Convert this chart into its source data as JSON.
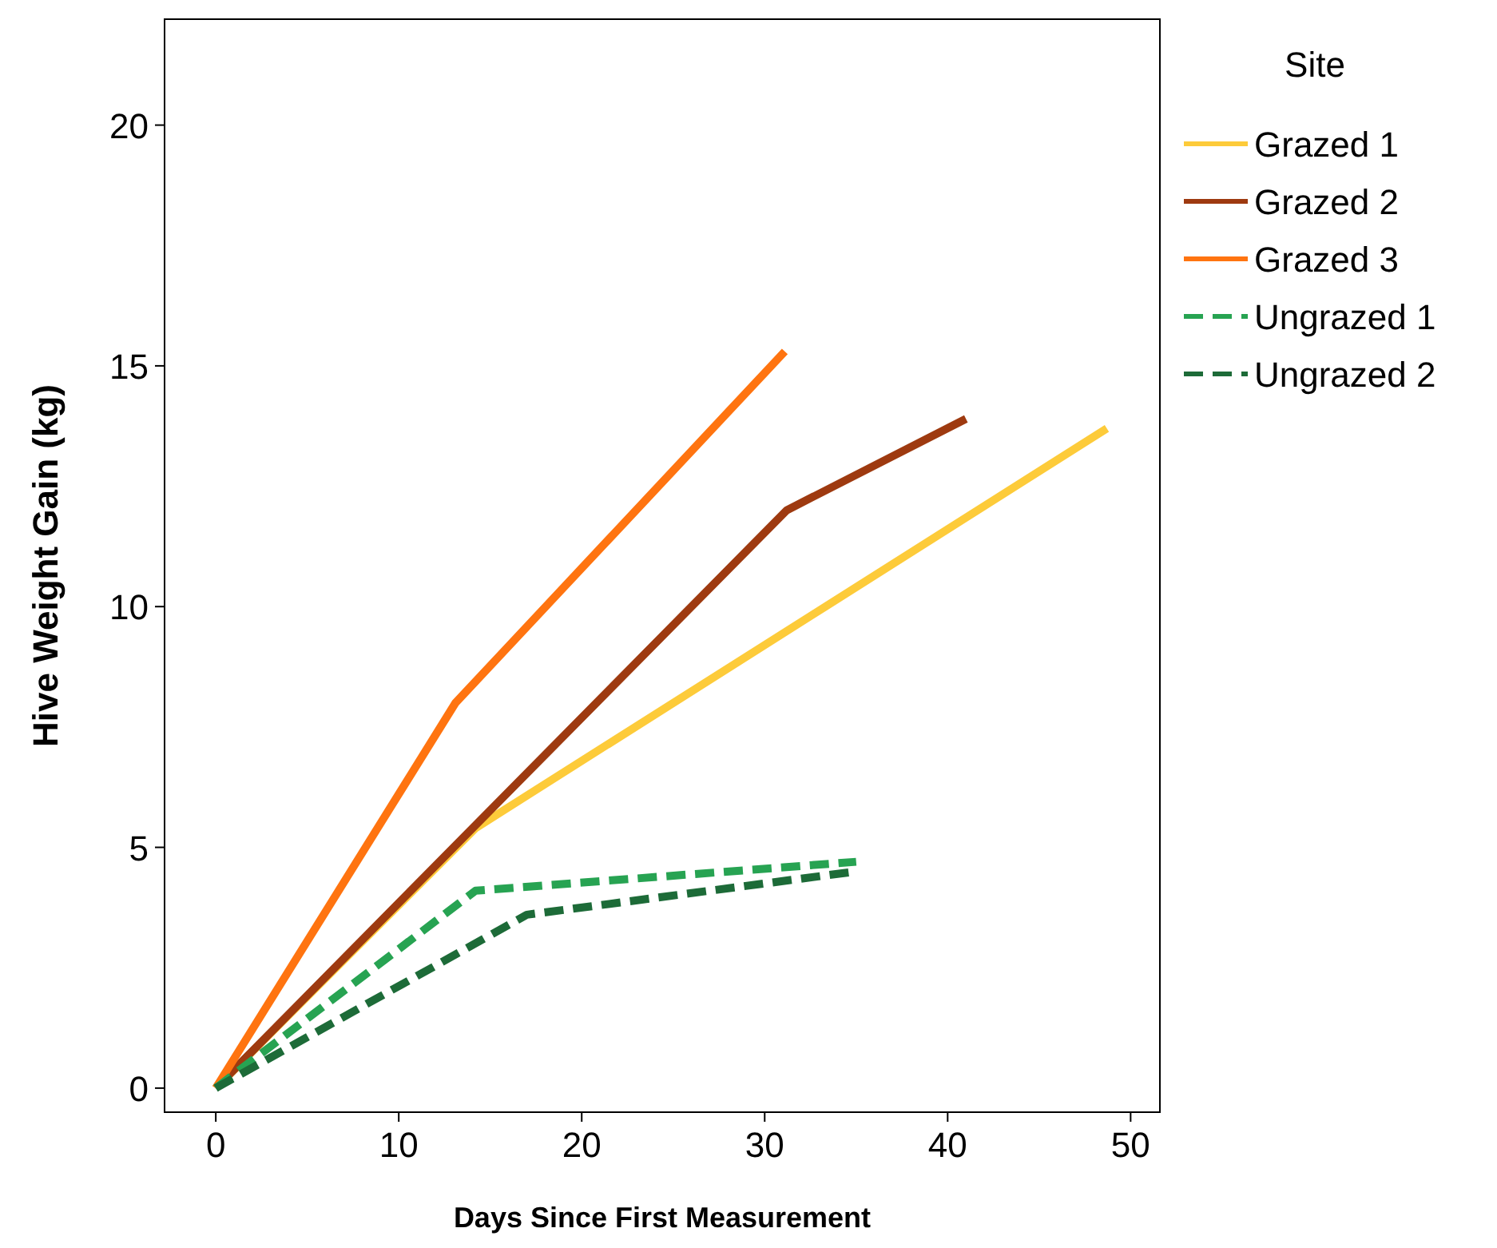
{
  "chart_data": {
    "type": "line",
    "xlabel": "Days Since First Measurement",
    "ylabel": "Hive Weight Gain (kg)",
    "legend_title": "Site",
    "legend": "right",
    "xlim": [
      -2.8,
      51.6
    ],
    "ylim": [
      -0.5,
      22.2
    ],
    "xticks": [
      0,
      10,
      20,
      30,
      40,
      50
    ],
    "yticks": [
      0,
      5,
      10,
      15,
      20
    ],
    "series": [
      {
        "name": "Grazed 1",
        "color": "#fdcb3a",
        "x": [
          0,
          14.2,
          48.7
        ],
        "values": [
          0,
          5.4,
          13.7
        ],
        "line_style": "solid"
      },
      {
        "name": "Grazed 2",
        "color": "#9e3a10",
        "x": [
          0,
          31.2,
          41
        ],
        "values": [
          0,
          12,
          13.9
        ],
        "line_style": "solid"
      },
      {
        "name": "Grazed 3",
        "color": "#ff7410",
        "x": [
          0,
          13.1,
          31.1
        ],
        "values": [
          0,
          8,
          15.3
        ],
        "line_style": "solid"
      },
      {
        "name": "Ungrazed 1",
        "color": "#27a352",
        "x": [
          0,
          14.2,
          35
        ],
        "values": [
          0,
          4.1,
          4.7
        ],
        "line_style": "dashed"
      },
      {
        "name": "Ungrazed 2",
        "color": "#1d6b38",
        "x": [
          0,
          17,
          35
        ],
        "values": [
          0,
          3.6,
          4.5
        ],
        "line_style": "dashed"
      }
    ]
  }
}
